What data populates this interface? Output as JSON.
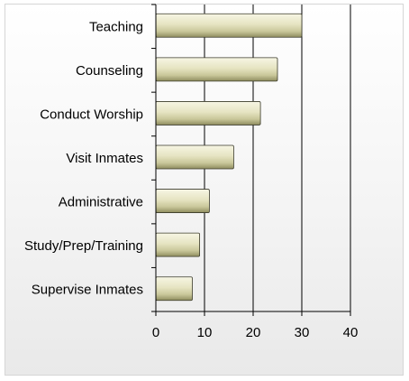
{
  "chart_data": {
    "type": "bar",
    "orientation": "horizontal",
    "categories": [
      "Teaching",
      "Counseling",
      "Conduct Worship",
      "Visit Inmates",
      "Administrative",
      "Study/Prep/Training",
      "Supervise Inmates"
    ],
    "values": [
      30,
      25,
      21.5,
      16,
      11,
      9,
      7.5
    ],
    "xlim": [
      0,
      40
    ],
    "xticks": [
      "0",
      "10",
      "20",
      "30",
      "40"
    ],
    "grid": "vertical",
    "title": "",
    "xlabel": "",
    "ylabel": ""
  },
  "colors": {
    "bar_light": "#f7f6e4",
    "bar_mid": "#dcdab0",
    "bar_dark": "#8e8c5e",
    "bar_stroke": "#3a3a2a",
    "axis": "#000000",
    "background": "#efefef"
  }
}
